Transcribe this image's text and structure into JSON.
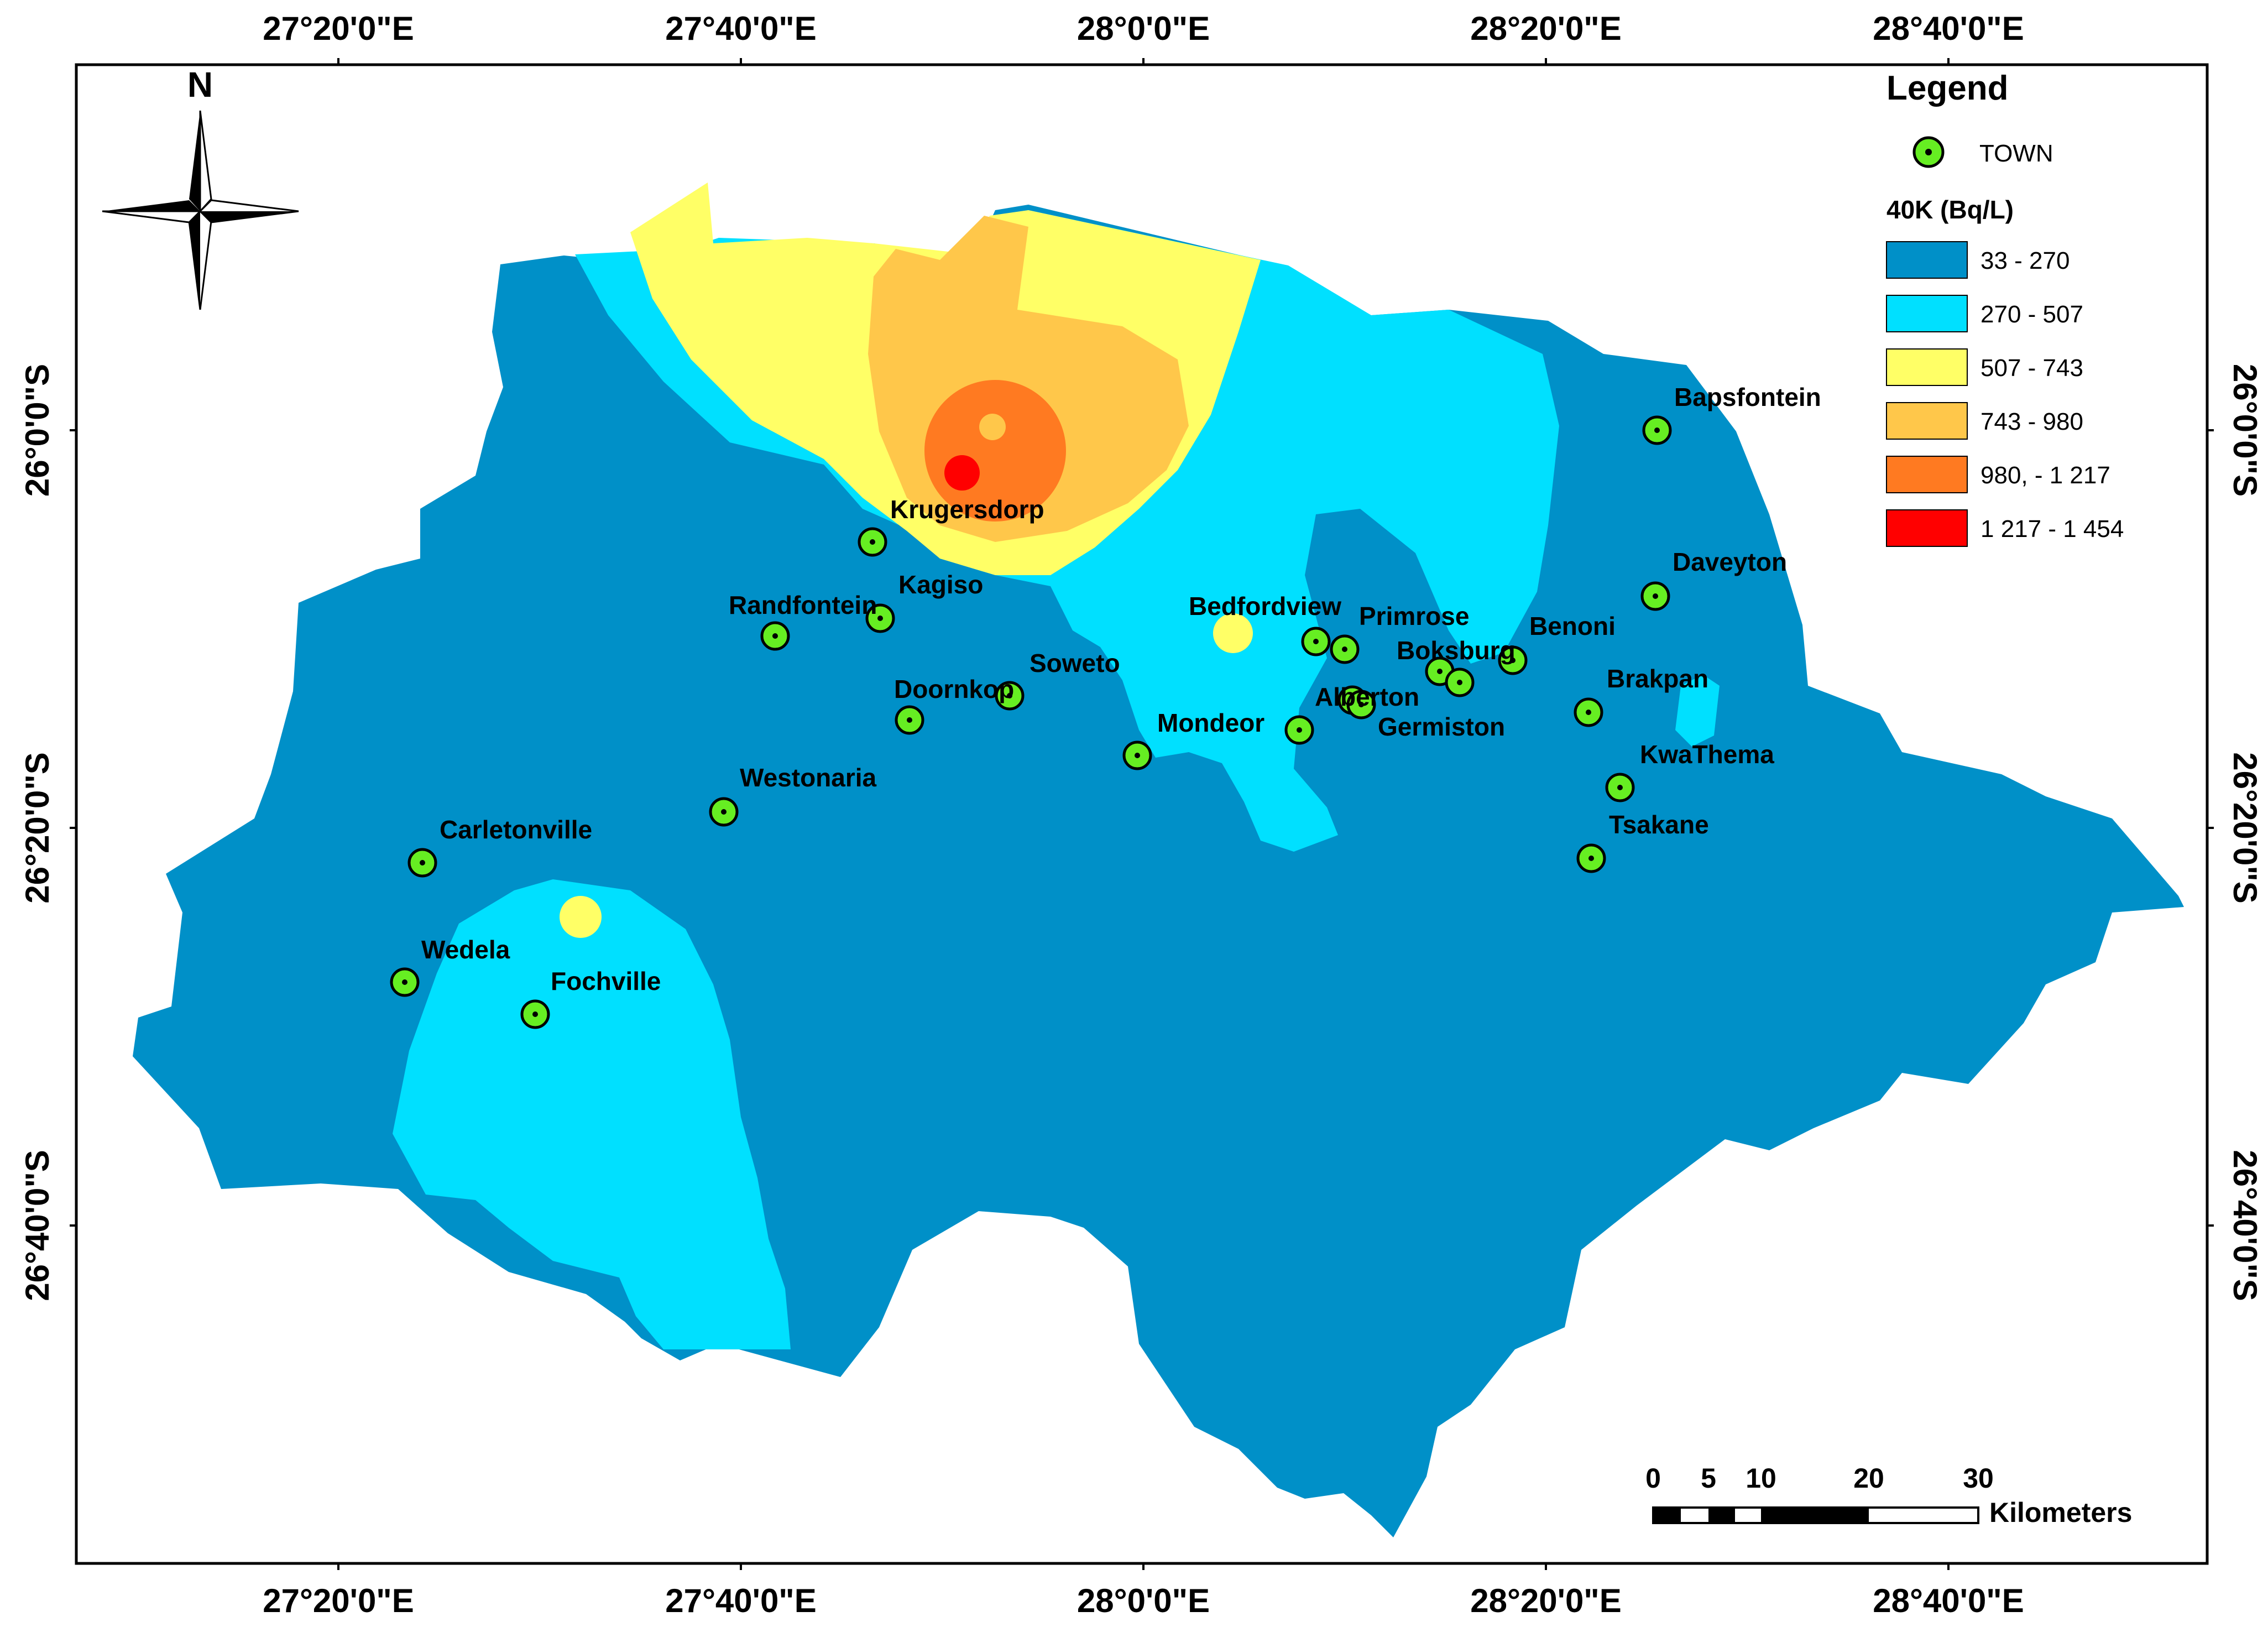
{
  "map": {
    "colors": {
      "class1": "#0090c8",
      "class2": "#00e0ff",
      "class3": "#ffff66",
      "class4": "#ffc74a",
      "class5": "#ff7a21",
      "class6": "#ff0000",
      "town_fill": "#66ee22",
      "frame": "#000000"
    },
    "top_labels": [
      "27°20'0\"E",
      "27°40'0\"E",
      "28°0'0\"E",
      "28°20'0\"E",
      "28°40'0\"E"
    ],
    "bottom_labels": [
      "27°20'0\"E",
      "27°40'0\"E",
      "28°0'0\"E",
      "28°20'0\"E",
      "28°40'0\"E"
    ],
    "left_labels": [
      "26°0'0\"S",
      "26°20'0\"S",
      "26°40'0\"S"
    ],
    "right_labels": [
      "26°0'0\"S",
      "26°20'0\"S",
      "26°40'0\"S"
    ],
    "north_label": "N"
  },
  "legend": {
    "title": "Legend",
    "town_label": "TOWN",
    "variable_title": "40K (Bq/L)",
    "classes": [
      {
        "label": "33 - 270",
        "color": "#0090c8"
      },
      {
        "label": "270 - 507",
        "color": "#00e0ff"
      },
      {
        "label": "507 - 743",
        "color": "#ffff66"
      },
      {
        "label": "743 - 980",
        "color": "#ffc74a"
      },
      {
        "label": "980, - 1 217",
        "color": "#ff7a21"
      },
      {
        "label": "1 217 - 1 454",
        "color": "#ff0000"
      }
    ]
  },
  "scale_bar": {
    "ticks": [
      "0",
      "5",
      "10",
      "20",
      "30"
    ],
    "unit": "Kilometers"
  },
  "towns": [
    "Bapsfontein",
    "Krugersdorp",
    "Kagiso",
    "Randfontein",
    "Daveyton",
    "Bedfordview",
    "Primrose",
    "Benoni",
    "Boksburg",
    "Soweto",
    "Doornkop",
    "Alberton",
    "Brakpan",
    "Mondeor",
    "Germiston",
    "KwaThema",
    "Westonaria",
    "Tsakane",
    "Carletonville",
    "Wedela",
    "Fochville"
  ]
}
